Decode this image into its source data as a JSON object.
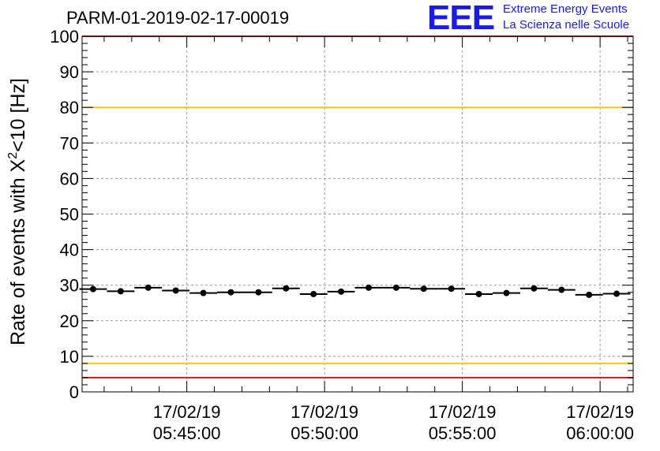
{
  "title": "PARM-01-2019-02-17-00019",
  "logo": {
    "mark": "EEE",
    "line1": "Extreme Energy Events",
    "line2": "La Scienza nelle Scuole"
  },
  "colors": {
    "upper_limit": "#f2c811",
    "lower_limit": "#e51c1c",
    "points": "#000000",
    "grid": "#999999",
    "logo": "#1a1aee"
  },
  "chart_data": {
    "type": "scatter",
    "title": "PARM-01-2019-02-17-00019",
    "ylabel_parts": [
      "Rate of events with X",
      "2",
      "<10 [Hz]"
    ],
    "ylim": [
      0,
      100
    ],
    "yticks": [
      0,
      10,
      20,
      30,
      40,
      50,
      60,
      70,
      80,
      90,
      100
    ],
    "xlim_minutes": [
      41.2,
      61.2
    ],
    "xticks": [
      {
        "minute": 45,
        "date": "17/02/19",
        "time": "05:45:00"
      },
      {
        "minute": 50,
        "date": "17/02/19",
        "time": "05:50:00"
      },
      {
        "minute": 55,
        "date": "17/02/19",
        "time": "05:55:00"
      },
      {
        "minute": 60,
        "date": "17/02/19",
        "time": "06:00:00"
      }
    ],
    "grid": true,
    "bin_width_minutes": 1,
    "x_minutes": [
      41.6,
      42.6,
      43.6,
      44.6,
      45.6,
      46.6,
      47.6,
      48.6,
      49.6,
      50.6,
      51.6,
      52.6,
      53.6,
      54.6,
      55.6,
      56.6,
      57.6,
      58.6,
      59.6,
      60.6
    ],
    "y": [
      28.9,
      28.3,
      29.3,
      28.5,
      27.8,
      28.0,
      28.0,
      29.1,
      27.5,
      28.2,
      29.3,
      29.3,
      29.0,
      29.0,
      27.5,
      27.8,
      29.1,
      28.7,
      27.3,
      27.6
    ],
    "reference_lines": [
      {
        "name": "upper",
        "y": 80,
        "color": "#f2c811"
      },
      {
        "name": "lower-yellow",
        "y": 8,
        "color": "#f2c811"
      },
      {
        "name": "lower-red",
        "y": 4,
        "color": "#e51c1c"
      },
      {
        "name": "top-red",
        "y": 100,
        "color": "#e51c1c"
      }
    ]
  }
}
